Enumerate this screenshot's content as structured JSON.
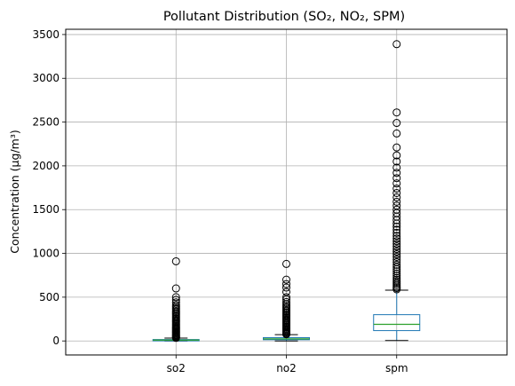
{
  "chart_data": {
    "type": "boxplot",
    "title": "Pollutant Distribution (SO₂, NO₂, SPM)",
    "xlabel": "",
    "ylabel": "Concentration (µg/m³)",
    "ylim": [
      -160,
      3560
    ],
    "yticks": [
      0,
      500,
      1000,
      1500,
      2000,
      2500,
      3000,
      3500
    ],
    "grid": true,
    "colors": {
      "box": "#1f77b4",
      "median": "#2ca02c",
      "grid": "#b0b0b0",
      "outlier": "#000000"
    },
    "categories": [
      "so2",
      "no2",
      "spm"
    ],
    "boxes": [
      {
        "name": "so2",
        "q1": 5,
        "median": 10,
        "q3": 16,
        "whisker_low": 0,
        "whisker_high": 32,
        "outliers": [
          35,
          42,
          50,
          58,
          66,
          75,
          84,
          93,
          102,
          112,
          122,
          133,
          144,
          155,
          166,
          178,
          190,
          202,
          215,
          228,
          241,
          254,
          268,
          282,
          296,
          311,
          326,
          342,
          358,
          374,
          390,
          410,
          440,
          470,
          500,
          600,
          910
        ]
      },
      {
        "name": "no2",
        "q1": 14,
        "median": 24,
        "q3": 38,
        "whisker_low": 0,
        "whisker_high": 72,
        "outliers": [
          76,
          85,
          95,
          105,
          116,
          127,
          138,
          150,
          162,
          174,
          186,
          199,
          212,
          225,
          238,
          252,
          266,
          280,
          294,
          308,
          323,
          338,
          353,
          368,
          384,
          400,
          420,
          445,
          475,
          500,
          560,
          610,
          650,
          700,
          880
        ]
      },
      {
        "name": "spm",
        "q1": 118,
        "median": 190,
        "q3": 300,
        "whisker_low": 5,
        "whisker_high": 580,
        "outliers": [
          590,
          605,
          620,
          640,
          660,
          680,
          700,
          720,
          745,
          770,
          795,
          820,
          845,
          870,
          900,
          930,
          960,
          990,
          1020,
          1050,
          1080,
          1110,
          1140,
          1170,
          1200,
          1235,
          1270,
          1305,
          1340,
          1380,
          1420,
          1460,
          1500,
          1545,
          1590,
          1640,
          1690,
          1740,
          1800,
          1860,
          1920,
          1980,
          2050,
          2120,
          2210,
          2370,
          2490,
          2610,
          3390
        ]
      }
    ]
  }
}
